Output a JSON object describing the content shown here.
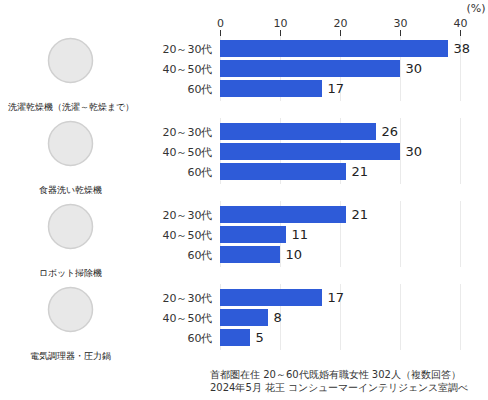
{
  "chart_data": {
    "type": "bar",
    "orientation": "horizontal",
    "categories": [
      "20～30代",
      "40～50代",
      "60代"
    ],
    "series": [
      {
        "name": "洗濯乾燥機（洗濯～乾燥まで）",
        "values": [
          38,
          30,
          17
        ]
      },
      {
        "name": "食器洗い乾燥機",
        "values": [
          26,
          30,
          21
        ]
      },
      {
        "name": "ロボット掃除機",
        "values": [
          21,
          11,
          10
        ]
      },
      {
        "name": "電気調理器・圧力鍋",
        "values": [
          17,
          8,
          5
        ]
      }
    ],
    "color": "#2e5bd8",
    "xlim": [
      0,
      40
    ],
    "xticks": [
      0,
      10,
      20,
      30,
      40
    ],
    "xlabel": "(%)",
    "grid": true,
    "data_labels": true,
    "annotations": [
      "首都圏在住 20～60代既婚有職女性  302人（複数回答）",
      "2024年5月 花王 コンシューマーインテリジェンス室調べ"
    ]
  }
}
